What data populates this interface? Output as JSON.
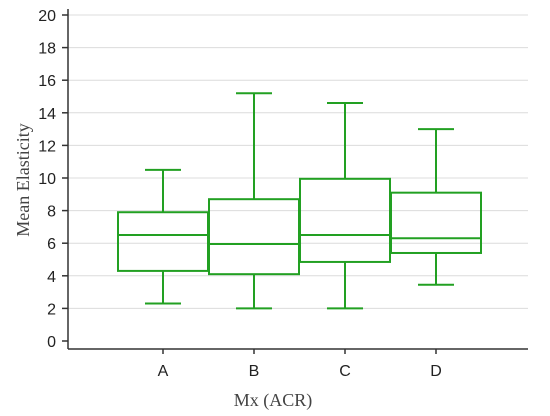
{
  "chart_data": {
    "type": "box",
    "title": "",
    "xlabel": "Mx (ACR)",
    "ylabel": "Mean Elasticity",
    "ylim": [
      0,
      20
    ],
    "yticks": [
      "0",
      "2",
      "4",
      "6",
      "8",
      "10",
      "12",
      "14",
      "16",
      "18",
      "20"
    ],
    "categories": [
      "A",
      "B",
      "C",
      "D"
    ],
    "boxes": [
      {
        "label": "A",
        "min": 2.3,
        "q1": 4.3,
        "median": 6.5,
        "q3": 7.9,
        "max": 10.5
      },
      {
        "label": "B",
        "min": 2.0,
        "q1": 4.1,
        "median": 5.95,
        "q3": 8.7,
        "max": 15.2
      },
      {
        "label": "C",
        "min": 2.0,
        "q1": 4.85,
        "median": 6.5,
        "q3": 9.95,
        "max": 14.6
      },
      {
        "label": "D",
        "min": 3.45,
        "q1": 5.4,
        "median": 6.3,
        "q3": 9.1,
        "max": 13.0
      }
    ],
    "grid": true,
    "box_color": "#22a022",
    "grid_color": "#dcdcdc",
    "axis_color": "#333333"
  }
}
